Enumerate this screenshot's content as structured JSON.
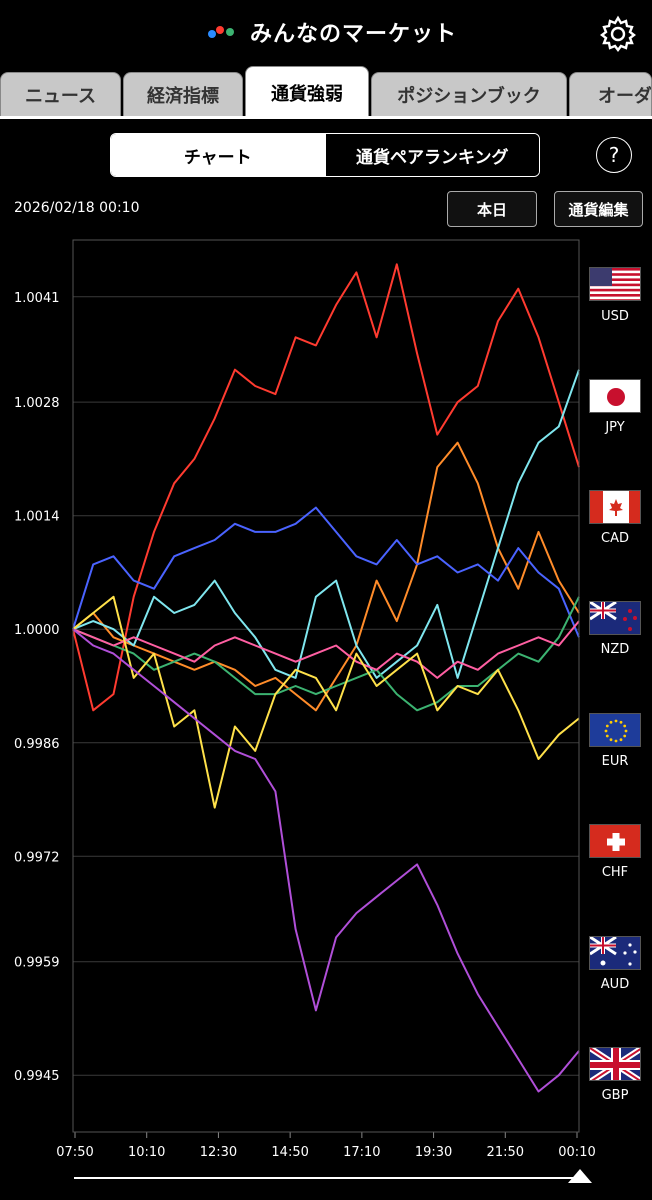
{
  "app": {
    "title": "みんなのマーケット"
  },
  "tabs": [
    "ニュース",
    "経済指標",
    "通貨強弱",
    "ポジションブック",
    "オーダー"
  ],
  "active_tab": "通貨強弱",
  "segment": {
    "left": "チャート",
    "right": "通貨ペアランキング",
    "selected": "チャート"
  },
  "help_label": "?",
  "datetime": "2026/02/18 00:10",
  "buttons": {
    "today": "本日",
    "edit": "通貨編集"
  },
  "icons": {
    "settings": "gear-icon",
    "help": "help-icon",
    "logo": "app-logo-icon"
  },
  "colors": {
    "background": "#000000",
    "grid": "#3a3a3a"
  },
  "currencies": [
    "USD",
    "JPY",
    "CAD",
    "NZD",
    "EUR",
    "CHF",
    "AUD",
    "GBP"
  ],
  "chart_data": {
    "type": "line",
    "xlabel": "",
    "ylabel": "",
    "y_ticks": [
      0.9945,
      0.9959,
      0.9972,
      0.9986,
      1.0,
      1.0014,
      1.0028,
      1.0041
    ],
    "x_ticks": [
      "07:50",
      "10:10",
      "12:30",
      "14:50",
      "17:10",
      "19:30",
      "21:50",
      "00:10"
    ],
    "ylim": [
      0.9938,
      1.0048
    ],
    "grid": true,
    "series": [
      {
        "name": "USD",
        "color": "#ff3b30",
        "values": [
          1.0,
          0.999,
          0.9992,
          1.0004,
          1.0012,
          1.0018,
          1.0021,
          1.0026,
          1.0032,
          1.003,
          1.0029,
          1.0036,
          1.0035,
          1.004,
          1.0044,
          1.0036,
          1.0045,
          1.0034,
          1.0024,
          1.0028,
          1.003,
          1.0038,
          1.0042,
          1.0036,
          1.0028,
          1.002
        ]
      },
      {
        "name": "JPY",
        "color": "#ff8c2a",
        "values": [
          1.0,
          1.0002,
          0.9999,
          0.9998,
          0.9997,
          0.9996,
          0.9995,
          0.9996,
          0.9995,
          0.9993,
          0.9994,
          0.9992,
          0.999,
          0.9994,
          0.9998,
          1.0006,
          1.0001,
          1.0008,
          1.002,
          1.0023,
          1.0018,
          1.001,
          1.0005,
          1.0012,
          1.0006,
          1.0002
        ]
      },
      {
        "name": "CAD",
        "color": "#7fe6ee",
        "values": [
          1.0,
          1.0001,
          1.0,
          0.9998,
          1.0004,
          1.0002,
          1.0003,
          1.0006,
          1.0002,
          0.9999,
          0.9995,
          0.9994,
          1.0004,
          1.0006,
          0.9998,
          0.9994,
          0.9996,
          0.9998,
          1.0003,
          0.9994,
          1.0002,
          1.001,
          1.0018,
          1.0023,
          1.0025,
          1.0032
        ]
      },
      {
        "name": "NZD",
        "color": "#4a63ff",
        "values": [
          1.0,
          1.0008,
          1.0009,
          1.0006,
          1.0005,
          1.0009,
          1.001,
          1.0011,
          1.0013,
          1.0012,
          1.0012,
          1.0013,
          1.0015,
          1.0012,
          1.0009,
          1.0008,
          1.0011,
          1.0008,
          1.0009,
          1.0007,
          1.0008,
          1.0006,
          1.001,
          1.0007,
          1.0005,
          0.9999
        ]
      },
      {
        "name": "EUR",
        "color": "#3cb371",
        "values": [
          1.0,
          0.9999,
          0.9998,
          0.9997,
          0.9995,
          0.9996,
          0.9997,
          0.9996,
          0.9994,
          0.9992,
          0.9992,
          0.9993,
          0.9992,
          0.9993,
          0.9994,
          0.9995,
          0.9992,
          0.999,
          0.9991,
          0.9993,
          0.9993,
          0.9995,
          0.9997,
          0.9996,
          0.9999,
          1.0004
        ]
      },
      {
        "name": "CHF",
        "color": "#ff5fa2",
        "values": [
          1.0,
          0.9999,
          0.9998,
          0.9999,
          0.9998,
          0.9997,
          0.9996,
          0.9998,
          0.9999,
          0.9998,
          0.9997,
          0.9996,
          0.9997,
          0.9998,
          0.9996,
          0.9995,
          0.9997,
          0.9996,
          0.9994,
          0.9996,
          0.9995,
          0.9997,
          0.9998,
          0.9999,
          0.9998,
          1.0001
        ]
      },
      {
        "name": "AUD",
        "color": "#ffe14a",
        "values": [
          1.0,
          1.0002,
          1.0004,
          0.9994,
          0.9997,
          0.9988,
          0.999,
          0.9978,
          0.9988,
          0.9985,
          0.9992,
          0.9995,
          0.9994,
          0.999,
          0.9997,
          0.9993,
          0.9995,
          0.9997,
          0.999,
          0.9993,
          0.9992,
          0.9995,
          0.999,
          0.9984,
          0.9987,
          0.9989
        ]
      },
      {
        "name": "GBP",
        "color": "#b04fd8",
        "values": [
          1.0,
          0.9998,
          0.9997,
          0.9995,
          0.9993,
          0.9991,
          0.9989,
          0.9987,
          0.9985,
          0.9984,
          0.998,
          0.9963,
          0.9953,
          0.9962,
          0.9965,
          0.9967,
          0.9969,
          0.9971,
          0.9966,
          0.996,
          0.9955,
          0.9951,
          0.9947,
          0.9943,
          0.9945,
          0.9948
        ]
      }
    ]
  },
  "slider": {
    "position": 1.0
  }
}
